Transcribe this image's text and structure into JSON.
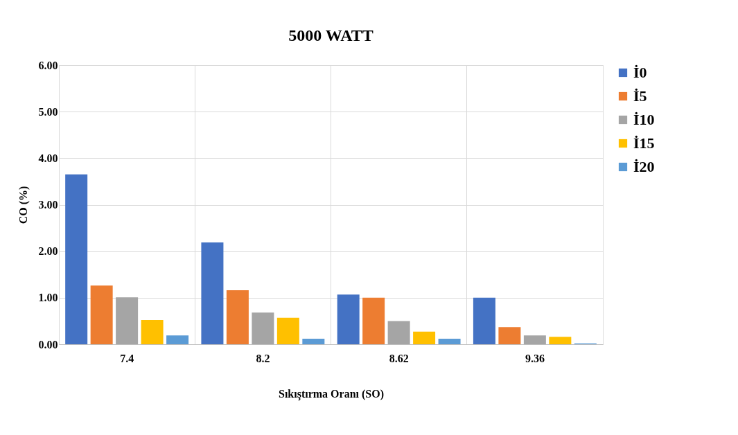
{
  "chart_data": {
    "type": "bar",
    "title": "5000 WATT",
    "xlabel": "Sıkıştırma Oranı (SO)",
    "ylabel": "CO (%)",
    "categories": [
      "7.4",
      "8.2",
      "8.62",
      "9.36"
    ],
    "series": [
      {
        "name": "İ0",
        "color": "#4472c4",
        "values": [
          3.65,
          2.19,
          1.07,
          1.0
        ]
      },
      {
        "name": "İ5",
        "color": "#ed7d31",
        "values": [
          1.26,
          1.16,
          1.0,
          0.37
        ]
      },
      {
        "name": "İ10",
        "color": "#a5a5a5",
        "values": [
          1.01,
          0.68,
          0.5,
          0.19
        ]
      },
      {
        "name": "İ15",
        "color": "#ffc000",
        "values": [
          0.52,
          0.57,
          0.27,
          0.16
        ]
      },
      {
        "name": "İ20",
        "color": "#5b9bd5",
        "values": [
          0.19,
          0.12,
          0.12,
          0.02
        ]
      }
    ],
    "ylim": [
      0,
      6
    ],
    "yticks": [
      {
        "value": 0,
        "label": "0.00"
      },
      {
        "value": 1,
        "label": "1.00"
      },
      {
        "value": 2,
        "label": "2.00"
      },
      {
        "value": 3,
        "label": "3.00"
      },
      {
        "value": 4,
        "label": "4.00"
      },
      {
        "value": 5,
        "label": "5.00"
      },
      {
        "value": 6,
        "label": "6.00"
      }
    ],
    "grid": true,
    "legend": "top right"
  }
}
